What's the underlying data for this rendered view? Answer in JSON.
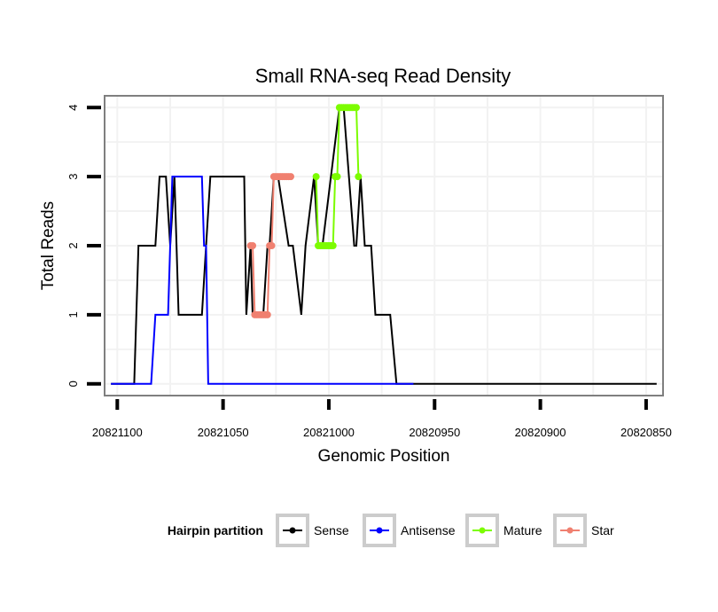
{
  "chart_data": {
    "type": "line",
    "title": "Small RNA-seq Read Density",
    "xlabel": "Genomic Position",
    "ylabel": "Total Reads",
    "x_reversed": true,
    "xlim": [
      20821106,
      20820842
    ],
    "ylim": [
      -0.17,
      4.17
    ],
    "x_ticks": [
      20821100,
      20821050,
      20821000,
      20820950,
      20820900,
      20820850
    ],
    "x_tick_labels": [
      "20821100",
      "20821050",
      "20821000",
      "20820950",
      "20820900",
      "20820850"
    ],
    "y_ticks": [
      0,
      1,
      2,
      3,
      4
    ],
    "y_tick_labels": [
      "0",
      "1",
      "2",
      "3",
      "4"
    ],
    "grid": true,
    "legend": {
      "title": "Hairpin partition",
      "position": "bottom",
      "entries": [
        "Sense",
        "Antisense",
        "Mature",
        "Star"
      ]
    },
    "series": [
      {
        "name": "Sense",
        "color": "#000000",
        "x": [
          20821103,
          20821092,
          20821090,
          20821082,
          20821080,
          20821077,
          20821075,
          20821073,
          20821071,
          20821060,
          20821058,
          20821056,
          20821040,
          20821039,
          20821037,
          20821036,
          20821031,
          20821029,
          20821028,
          20821026,
          20821024,
          20821019,
          20821017,
          20821013,
          20821011,
          20821007,
          20821005,
          20821003,
          20820995,
          20820993,
          20820988,
          20820987,
          20820985,
          20820983,
          20820980,
          20820978,
          20820971,
          20820968,
          20820960,
          20820845
        ],
        "y": [
          0,
          0,
          2,
          2,
          3,
          3,
          2,
          3,
          1,
          1,
          2,
          3,
          3,
          1,
          2,
          1,
          1,
          2,
          2,
          3,
          3,
          2,
          2,
          1,
          2,
          3,
          2,
          2,
          4,
          4,
          2,
          2,
          3,
          2,
          2,
          1,
          1,
          0,
          0,
          0
        ]
      },
      {
        "name": "Antisense",
        "color": "#0000ff",
        "x": [
          20821103,
          20821084,
          20821082,
          20821076,
          20821074,
          20821060,
          20821059,
          20821058,
          20821057,
          20820960
        ],
        "y": [
          0,
          0,
          1,
          1,
          3,
          3,
          2,
          2,
          0,
          0
        ]
      },
      {
        "name": "Mature",
        "color": "#7cfc00",
        "x": [
          20821006,
          20821005,
          20821004,
          20821003,
          20821002,
          20821001,
          20821000,
          20820999,
          20820998,
          20820997,
          20820996,
          20820995,
          20820994,
          20820993,
          20820992,
          20820991,
          20820990,
          20820989,
          20820988,
          20820987,
          20820986
        ],
        "y": [
          3,
          2,
          2,
          2,
          2,
          2,
          2,
          2,
          2,
          3,
          3,
          4,
          4,
          4,
          4,
          4,
          4,
          4,
          4,
          4,
          3
        ]
      },
      {
        "name": "Star",
        "color": "#f08070",
        "x": [
          20821037,
          20821036,
          20821035,
          20821034,
          20821033,
          20821032,
          20821031,
          20821030,
          20821029,
          20821028,
          20821027,
          20821026,
          20821025,
          20821024,
          20821023,
          20821022,
          20821021,
          20821020,
          20821019,
          20821018
        ],
        "y": [
          2,
          2,
          1,
          1,
          1,
          1,
          1,
          1,
          1,
          2,
          2,
          3,
          3,
          3,
          3,
          3,
          3,
          3,
          3,
          3
        ]
      }
    ]
  }
}
